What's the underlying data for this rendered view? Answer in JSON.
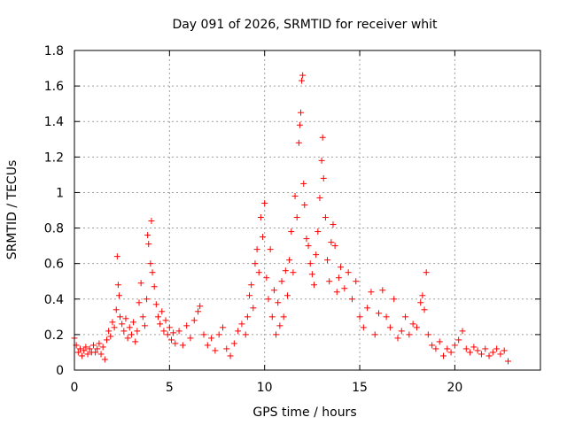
{
  "chart_data": {
    "type": "scatter",
    "title": "Day 091 of 2026, SRMTID for receiver whit",
    "xlabel": "GPS time / hours",
    "ylabel": "SRMTID / TECUs",
    "xlim": [
      0,
      24.5
    ],
    "ylim": [
      0,
      1.8
    ],
    "xticks": [
      0,
      5,
      10,
      15,
      20
    ],
    "xtick_labels": [
      "0",
      "5",
      "10",
      "15",
      "20"
    ],
    "yticks": [
      0,
      0.2,
      0.4,
      0.6,
      0.8,
      1.0,
      1.2,
      1.4,
      1.6,
      1.8
    ],
    "ytick_labels": [
      "0",
      "0.2",
      "0.4",
      "0.6",
      "0.8",
      "1",
      "1.2",
      "1.4",
      "1.6",
      "1.8"
    ],
    "grid": true,
    "marker": "+",
    "marker_color": "#ff0000",
    "series": [
      {
        "name": "SRMTID",
        "points": [
          [
            0.0,
            0.18
          ],
          [
            0.1,
            0.14
          ],
          [
            0.2,
            0.1
          ],
          [
            0.3,
            0.12
          ],
          [
            0.4,
            0.08
          ],
          [
            0.5,
            0.11
          ],
          [
            0.6,
            0.13
          ],
          [
            0.7,
            0.09
          ],
          [
            0.8,
            0.12
          ],
          [
            0.9,
            0.1
          ],
          [
            1.0,
            0.14
          ],
          [
            1.1,
            0.1
          ],
          [
            1.2,
            0.12
          ],
          [
            1.3,
            0.15
          ],
          [
            1.4,
            0.09
          ],
          [
            1.5,
            0.13
          ],
          [
            1.6,
            0.06
          ],
          [
            1.7,
            0.17
          ],
          [
            1.8,
            0.22
          ],
          [
            1.9,
            0.19
          ],
          [
            2.0,
            0.27
          ],
          [
            2.1,
            0.24
          ],
          [
            2.2,
            0.34
          ],
          [
            2.25,
            0.64
          ],
          [
            2.3,
            0.48
          ],
          [
            2.35,
            0.42
          ],
          [
            2.4,
            0.3
          ],
          [
            2.5,
            0.26
          ],
          [
            2.6,
            0.22
          ],
          [
            2.7,
            0.29
          ],
          [
            2.8,
            0.18
          ],
          [
            2.9,
            0.24
          ],
          [
            3.0,
            0.2
          ],
          [
            3.1,
            0.27
          ],
          [
            3.2,
            0.16
          ],
          [
            3.3,
            0.22
          ],
          [
            3.4,
            0.38
          ],
          [
            3.5,
            0.49
          ],
          [
            3.6,
            0.3
          ],
          [
            3.7,
            0.25
          ],
          [
            3.8,
            0.4
          ],
          [
            3.85,
            0.76
          ],
          [
            3.9,
            0.71
          ],
          [
            4.0,
            0.6
          ],
          [
            4.05,
            0.84
          ],
          [
            4.1,
            0.55
          ],
          [
            4.2,
            0.47
          ],
          [
            4.3,
            0.37
          ],
          [
            4.4,
            0.3
          ],
          [
            4.5,
            0.26
          ],
          [
            4.6,
            0.33
          ],
          [
            4.7,
            0.22
          ],
          [
            4.8,
            0.28
          ],
          [
            4.9,
            0.2
          ],
          [
            5.0,
            0.24
          ],
          [
            5.1,
            0.17
          ],
          [
            5.2,
            0.21
          ],
          [
            5.3,
            0.15
          ],
          [
            5.5,
            0.22
          ],
          [
            5.7,
            0.14
          ],
          [
            5.9,
            0.25
          ],
          [
            6.1,
            0.18
          ],
          [
            6.3,
            0.28
          ],
          [
            6.5,
            0.33
          ],
          [
            6.6,
            0.36
          ],
          [
            6.8,
            0.2
          ],
          [
            7.0,
            0.14
          ],
          [
            7.2,
            0.18
          ],
          [
            7.4,
            0.11
          ],
          [
            7.6,
            0.2
          ],
          [
            7.8,
            0.24
          ],
          [
            8.0,
            0.12
          ],
          [
            8.2,
            0.08
          ],
          [
            8.4,
            0.15
          ],
          [
            8.6,
            0.22
          ],
          [
            8.8,
            0.26
          ],
          [
            9.0,
            0.2
          ],
          [
            9.1,
            0.3
          ],
          [
            9.2,
            0.42
          ],
          [
            9.3,
            0.48
          ],
          [
            9.4,
            0.35
          ],
          [
            9.5,
            0.6
          ],
          [
            9.6,
            0.68
          ],
          [
            9.7,
            0.55
          ],
          [
            9.8,
            0.86
          ],
          [
            9.9,
            0.75
          ],
          [
            10.0,
            0.94
          ],
          [
            10.1,
            0.52
          ],
          [
            10.2,
            0.4
          ],
          [
            10.3,
            0.68
          ],
          [
            10.4,
            0.3
          ],
          [
            10.5,
            0.45
          ],
          [
            10.6,
            0.2
          ],
          [
            10.7,
            0.38
          ],
          [
            10.8,
            0.25
          ],
          [
            10.9,
            0.5
          ],
          [
            11.0,
            0.3
          ],
          [
            11.1,
            0.56
          ],
          [
            11.2,
            0.42
          ],
          [
            11.3,
            0.62
          ],
          [
            11.4,
            0.78
          ],
          [
            11.5,
            0.55
          ],
          [
            11.6,
            0.98
          ],
          [
            11.7,
            0.86
          ],
          [
            11.8,
            1.28
          ],
          [
            11.85,
            1.38
          ],
          [
            11.9,
            1.45
          ],
          [
            11.95,
            1.63
          ],
          [
            12.0,
            1.66
          ],
          [
            12.05,
            1.05
          ],
          [
            12.1,
            0.93
          ],
          [
            12.2,
            0.74
          ],
          [
            12.3,
            0.7
          ],
          [
            12.4,
            0.6
          ],
          [
            12.5,
            0.54
          ],
          [
            12.6,
            0.48
          ],
          [
            12.7,
            0.65
          ],
          [
            12.8,
            0.78
          ],
          [
            12.9,
            0.97
          ],
          [
            13.0,
            1.18
          ],
          [
            13.05,
            1.31
          ],
          [
            13.1,
            1.08
          ],
          [
            13.2,
            0.86
          ],
          [
            13.3,
            0.62
          ],
          [
            13.4,
            0.5
          ],
          [
            13.5,
            0.72
          ],
          [
            13.6,
            0.82
          ],
          [
            13.7,
            0.7
          ],
          [
            13.8,
            0.44
          ],
          [
            13.9,
            0.52
          ],
          [
            14.0,
            0.58
          ],
          [
            14.2,
            0.46
          ],
          [
            14.4,
            0.55
          ],
          [
            14.6,
            0.4
          ],
          [
            14.8,
            0.5
          ],
          [
            15.0,
            0.3
          ],
          [
            15.2,
            0.24
          ],
          [
            15.4,
            0.35
          ],
          [
            15.6,
            0.44
          ],
          [
            15.8,
            0.2
          ],
          [
            16.0,
            0.32
          ],
          [
            16.2,
            0.45
          ],
          [
            16.4,
            0.3
          ],
          [
            16.6,
            0.24
          ],
          [
            16.8,
            0.4
          ],
          [
            17.0,
            0.18
          ],
          [
            17.2,
            0.22
          ],
          [
            17.4,
            0.3
          ],
          [
            17.6,
            0.2
          ],
          [
            17.8,
            0.26
          ],
          [
            18.0,
            0.24
          ],
          [
            18.2,
            0.38
          ],
          [
            18.3,
            0.42
          ],
          [
            18.4,
            0.34
          ],
          [
            18.5,
            0.55
          ],
          [
            18.6,
            0.2
          ],
          [
            18.8,
            0.14
          ],
          [
            19.0,
            0.12
          ],
          [
            19.2,
            0.16
          ],
          [
            19.4,
            0.08
          ],
          [
            19.6,
            0.12
          ],
          [
            19.8,
            0.1
          ],
          [
            20.0,
            0.14
          ],
          [
            20.2,
            0.17
          ],
          [
            20.4,
            0.22
          ],
          [
            20.6,
            0.12
          ],
          [
            20.8,
            0.1
          ],
          [
            21.0,
            0.13
          ],
          [
            21.2,
            0.11
          ],
          [
            21.4,
            0.09
          ],
          [
            21.6,
            0.12
          ],
          [
            21.8,
            0.08
          ],
          [
            22.0,
            0.1
          ],
          [
            22.2,
            0.12
          ],
          [
            22.4,
            0.09
          ],
          [
            22.6,
            0.11
          ],
          [
            22.8,
            0.05
          ]
        ]
      }
    ]
  }
}
